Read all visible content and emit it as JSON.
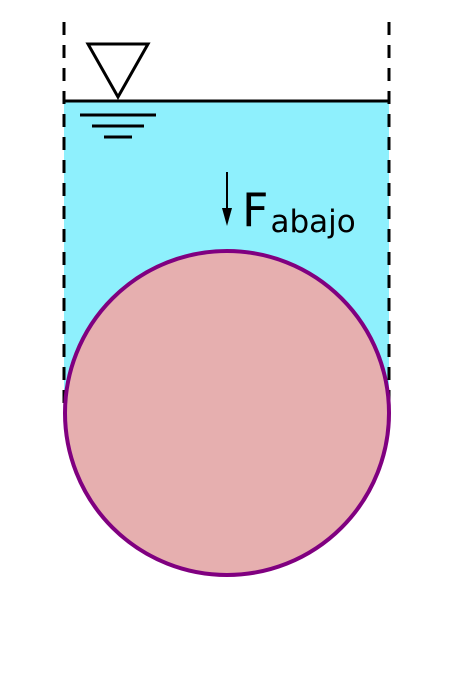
{
  "diagram": {
    "force": {
      "symbol": "F",
      "subscript": "abajo"
    }
  },
  "colors": {
    "water": "#8ef0fd",
    "sphere_fill": "#e6afaf",
    "sphere_stroke": "#800080",
    "lines": "#000000"
  }
}
